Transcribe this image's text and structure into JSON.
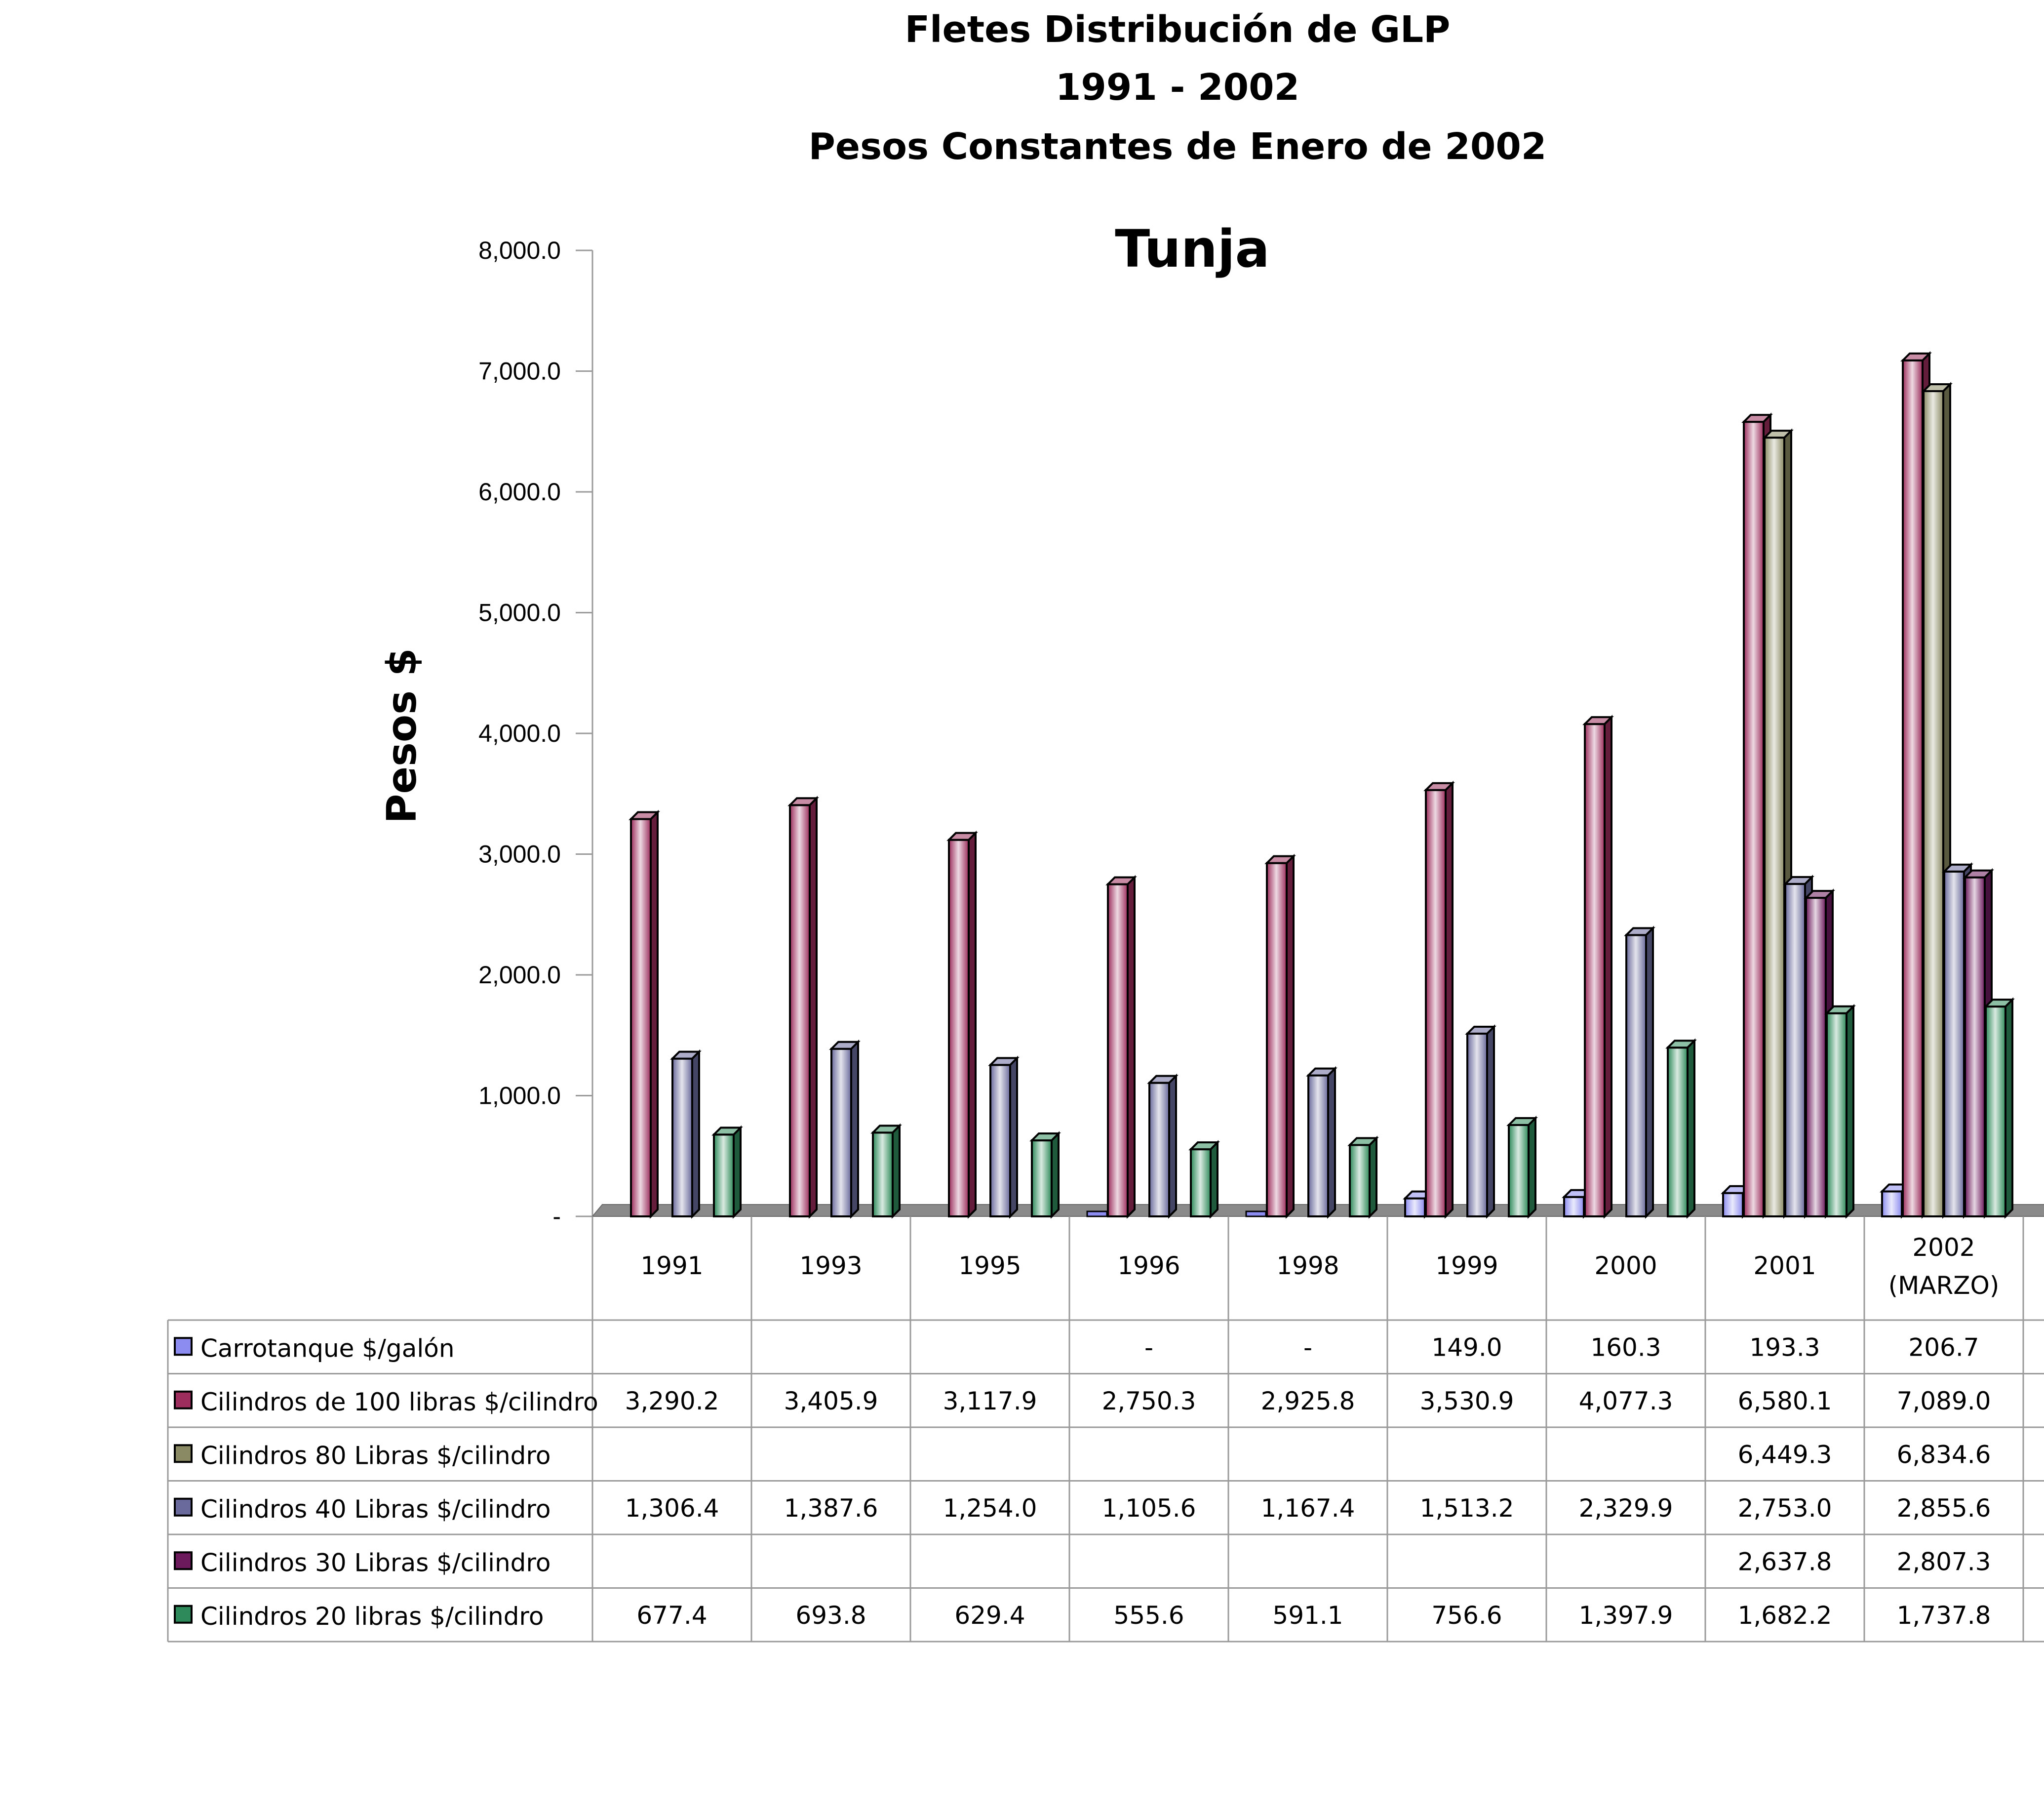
{
  "chart_data": {
    "type": "bar",
    "title_lines": [
      "Fletes  Distribución de GLP",
      "1991 - 2002",
      "Pesos Constantes de Enero de 2002"
    ],
    "subtitle": "Tunja",
    "ylabel": "Pesos $",
    "xlabel": "",
    "ylim": [
      0,
      8000
    ],
    "yticks": [
      0,
      1000,
      2000,
      3000,
      4000,
      5000,
      6000,
      7000,
      8000
    ],
    "ytick_labels": [
      "-",
      "1,000.0",
      "2,000.0",
      "3,000.0",
      "4,000.0",
      "5,000.0",
      "6,000.0",
      "7,000.0",
      "8,000.0"
    ],
    "grid": false,
    "legend_placement": "data-table-left",
    "categories": [
      [
        "1991"
      ],
      [
        "1993"
      ],
      [
        "1995"
      ],
      [
        "1996"
      ],
      [
        "1998"
      ],
      [
        "1999"
      ],
      [
        "2000"
      ],
      [
        "2001"
      ],
      [
        "2002",
        "(MARZO)"
      ]
    ],
    "series": [
      {
        "name": "Carrotanque $/galón",
        "color": "#8c8cf0",
        "values": [
          null,
          null,
          null,
          0,
          0,
          149.0,
          160.3,
          193.3,
          206.7
        ],
        "labels": [
          "",
          "",
          "",
          "-",
          "-",
          "149.0",
          "160.3",
          "193.3",
          "206.7"
        ]
      },
      {
        "name": "Cilindros de 100 libras $/cilindro",
        "color": "#9c2d5c",
        "values": [
          3290.2,
          3405.9,
          3117.9,
          2750.3,
          2925.8,
          3530.9,
          4077.3,
          6580.1,
          7089.0
        ],
        "labels": [
          "3,290.2",
          "3,405.9",
          "3,117.9",
          "2,750.3",
          "2,925.8",
          "3,530.9",
          "4,077.3",
          "6,580.1",
          "7,089.0"
        ]
      },
      {
        "name": "Cilindros 80 Libras $/cilindro",
        "color": "#8a8a64",
        "values": [
          null,
          null,
          null,
          null,
          null,
          null,
          null,
          6449.3,
          6834.6
        ],
        "labels": [
          "",
          "",
          "",
          "",
          "",
          "",
          "",
          "6,449.3",
          "6,834.6"
        ]
      },
      {
        "name": "Cilindros 40 Libras $/cilindro",
        "color": "#6a6a9c",
        "values": [
          1306.4,
          1387.6,
          1254.0,
          1105.6,
          1167.4,
          1513.2,
          2329.9,
          2753.0,
          2855.6
        ],
        "labels": [
          "1,306.4",
          "1,387.6",
          "1,254.0",
          "1,105.6",
          "1,167.4",
          "1,513.2",
          "2,329.9",
          "2,753.0",
          "2,855.6"
        ]
      },
      {
        "name": "Cilindros 30 Libras $/cilindro",
        "color": "#6c1a5c",
        "values": [
          null,
          null,
          null,
          null,
          null,
          null,
          null,
          2637.8,
          2807.3
        ],
        "labels": [
          "",
          "",
          "",
          "",
          "",
          "",
          "",
          "2,637.8",
          "2,807.3"
        ]
      },
      {
        "name": "Cilindros 20 libras $/cilindro",
        "color": "#2e8a5a",
        "values": [
          677.4,
          693.8,
          629.4,
          555.6,
          591.1,
          756.6,
          1397.9,
          1682.2,
          1737.8
        ],
        "labels": [
          "677.4",
          "693.8",
          "629.4",
          "555.6",
          "591.1",
          "756.6",
          "1,397.9",
          "1,682.2",
          "1,737.8"
        ]
      }
    ]
  }
}
